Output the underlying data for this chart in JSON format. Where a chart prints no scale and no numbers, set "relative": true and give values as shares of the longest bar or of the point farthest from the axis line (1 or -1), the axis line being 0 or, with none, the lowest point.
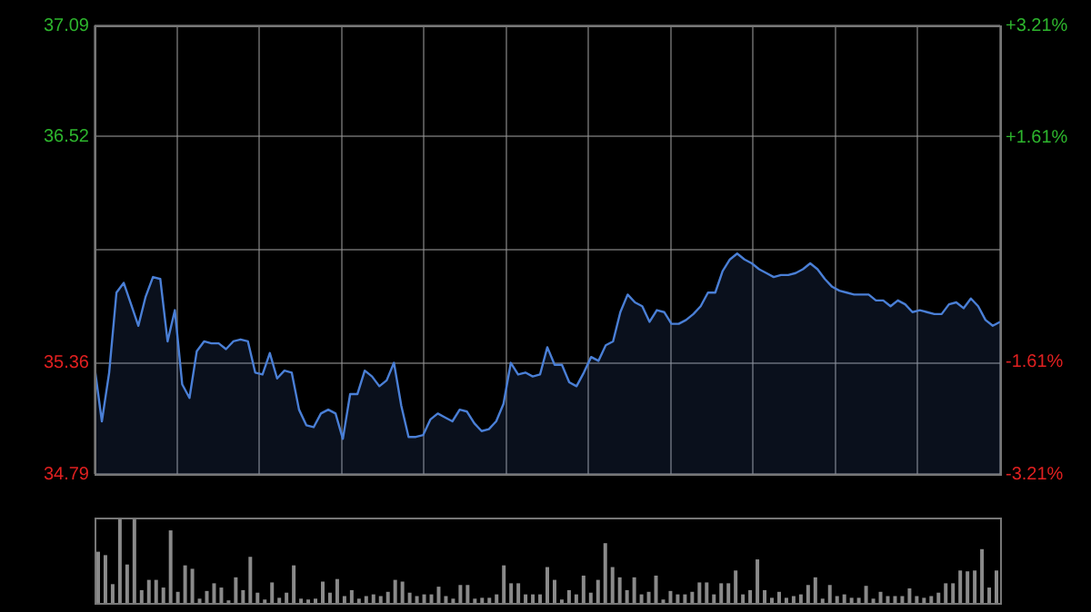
{
  "chart_data": [
    {
      "type": "area",
      "categories": [
        null,
        null,
        null,
        null,
        null,
        null,
        null,
        null,
        null,
        null,
        null,
        null,
        null,
        null,
        null,
        null,
        null,
        null,
        null,
        null,
        null,
        null,
        null,
        null,
        null,
        null,
        null,
        null,
        null,
        null,
        null,
        null,
        null,
        null,
        null,
        null,
        null,
        null,
        null,
        null,
        null,
        null,
        null,
        null,
        null,
        null,
        null,
        null,
        null,
        null,
        null,
        null,
        null,
        null,
        null,
        null,
        null,
        null,
        null,
        null,
        null,
        null,
        null,
        null,
        null,
        null,
        null,
        null,
        null,
        null,
        null,
        null,
        null,
        null,
        null,
        null,
        null,
        null,
        null,
        null,
        null,
        null,
        null,
        null,
        null,
        null,
        null,
        null,
        null,
        null,
        null,
        null,
        null,
        null,
        null,
        null,
        null,
        null,
        null,
        null,
        null,
        null,
        null,
        null,
        null,
        null,
        null,
        null,
        null,
        null,
        null,
        null,
        null,
        null,
        null,
        null,
        null,
        null,
        null,
        null,
        null,
        null,
        null,
        null,
        null
      ],
      "series": [
        {
          "color": "#4a7fd6",
          "values": [
            35.34,
            35.06,
            35.31,
            35.72,
            35.77,
            35.66,
            35.55,
            35.7,
            35.8,
            35.79,
            35.47,
            35.63,
            35.25,
            35.18,
            35.42,
            35.47,
            35.46,
            35.46,
            35.43,
            35.47,
            35.48,
            35.47,
            35.31,
            35.3,
            35.41,
            35.28,
            35.32,
            35.31,
            35.12,
            35.04,
            35.03,
            35.1,
            35.12,
            35.1,
            34.97,
            35.2,
            35.2,
            35.32,
            35.29,
            35.24,
            35.27,
            35.36,
            35.14,
            34.98,
            34.98,
            34.99,
            35.07,
            35.1,
            35.08,
            35.06,
            35.12,
            35.11,
            35.05,
            35.01,
            35.02,
            35.06,
            35.15,
            35.36,
            35.3,
            35.31,
            35.29,
            35.3,
            35.44,
            35.35,
            35.35,
            35.26,
            35.24,
            35.31,
            35.39,
            35.37,
            35.45,
            35.47,
            35.62,
            35.71,
            35.67,
            35.65,
            35.57,
            35.63,
            35.62,
            35.56,
            35.56,
            35.58,
            35.61,
            35.65,
            35.72,
            35.72,
            35.83,
            35.89,
            35.92,
            35.89,
            35.87,
            35.84,
            35.82,
            35.8,
            35.81,
            35.81,
            35.82,
            35.84,
            35.87,
            35.84,
            35.79,
            35.75,
            35.73,
            35.72,
            35.71,
            35.71,
            35.71,
            35.68,
            35.68,
            35.65,
            35.68,
            35.66,
            35.62,
            35.63,
            35.62,
            35.61,
            35.61,
            35.66,
            35.67,
            35.64,
            35.69,
            35.65,
            35.58,
            35.55,
            35.57
          ]
        }
      ],
      "ylim": [
        34.79,
        37.09
      ],
      "yticks": [
        34.79,
        35.36,
        {
          "value": 35.94,
          "label": null
        },
        36.52,
        37.09
      ],
      "y2lim": [
        -3.21,
        3.21
      ],
      "y2ticks": [
        {
          "value": -3.21,
          "label": "-3.21%"
        },
        {
          "value": -1.61,
          "label": "-1.61%"
        },
        {
          "value": 1.61,
          "label": "+1.61%"
        },
        {
          "value": 3.21,
          "label": "+3.21%"
        }
      ],
      "grid": true,
      "legend": false,
      "marker": "none",
      "line_style": "solid"
    },
    {
      "type": "bar",
      "relative": true,
      "categories": [
        null,
        null,
        null,
        null,
        null,
        null,
        null,
        null,
        null,
        null,
        null,
        null,
        null,
        null,
        null,
        null,
        null,
        null,
        null,
        null,
        null,
        null,
        null,
        null,
        null,
        null,
        null,
        null,
        null,
        null,
        null,
        null,
        null,
        null,
        null,
        null,
        null,
        null,
        null,
        null,
        null,
        null,
        null,
        null,
        null,
        null,
        null,
        null,
        null,
        null,
        null,
        null,
        null,
        null,
        null,
        null,
        null,
        null,
        null,
        null,
        null,
        null,
        null,
        null,
        null,
        null,
        null,
        null,
        null,
        null,
        null,
        null,
        null,
        null,
        null,
        null,
        null,
        null,
        null,
        null,
        null,
        null,
        null,
        null,
        null,
        null,
        null,
        null,
        null,
        null,
        null,
        null,
        null,
        null,
        null,
        null,
        null,
        null,
        null,
        null,
        null,
        null,
        null,
        null,
        null,
        null,
        null,
        null,
        null,
        null,
        null,
        null,
        null,
        null,
        null,
        null,
        null,
        null,
        null,
        null,
        null,
        null,
        null,
        null,
        null
      ],
      "color": "#8a8a8a",
      "values": [
        0.6,
        0.56,
        0.22,
        1,
        0.45,
        1,
        0.15,
        0.27,
        0.27,
        0.18,
        0.85,
        0.13,
        0.44,
        0.4,
        0.05,
        0.14,
        0.23,
        0.18,
        0.03,
        0.3,
        0.15,
        0.54,
        0.12,
        0.04,
        0.24,
        0.06,
        0.12,
        0.44,
        0.05,
        0.04,
        0.05,
        0.25,
        0.12,
        0.28,
        0.08,
        0.15,
        0.05,
        0.08,
        0.1,
        0.08,
        0.13,
        0.27,
        0.25,
        0.12,
        0.08,
        0.1,
        0.1,
        0.19,
        0.08,
        0.05,
        0.21,
        0.21,
        0.05,
        0.06,
        0.06,
        0.1,
        0.44,
        0.23,
        0.23,
        0.1,
        0.1,
        0.1,
        0.42,
        0.27,
        0.04,
        0.15,
        0.1,
        0.32,
        0.12,
        0.27,
        0.7,
        0.42,
        0.3,
        0.15,
        0.3,
        0.1,
        0.13,
        0.32,
        0.04,
        0.14,
        0.1,
        0.1,
        0.13,
        0.24,
        0.24,
        0.1,
        0.23,
        0.23,
        0.38,
        0.1,
        0.15,
        0.51,
        0.15,
        0.06,
        0.13,
        0.06,
        0.08,
        0.1,
        0.21,
        0.3,
        0.05,
        0.21,
        0.08,
        0.1,
        0.06,
        0.06,
        0.2,
        0.05,
        0.13,
        0.08,
        0.08,
        0.08,
        0.17,
        0.08,
        0.06,
        0.08,
        0.12,
        0.23,
        0.23,
        0.38,
        0.37,
        0.38,
        0.63,
        0.18,
        0.38
      ],
      "legend": false
    }
  ]
}
